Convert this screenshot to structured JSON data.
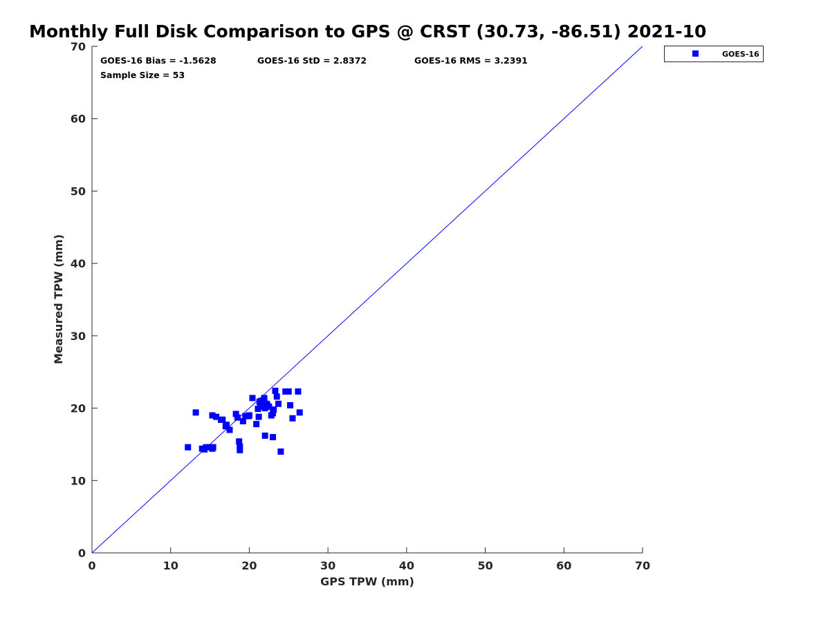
{
  "chart_data": {
    "type": "scatter",
    "title": "Monthly Full Disk Comparison to GPS @ CRST (30.73, -86.51) 2021-10",
    "xlabel": "GPS TPW (mm)",
    "ylabel": "Measured TPW (mm)",
    "xlim": [
      0,
      70
    ],
    "ylim": [
      0,
      70
    ],
    "xticks": [
      "0",
      "10",
      "20",
      "30",
      "40",
      "50",
      "60",
      "70"
    ],
    "yticks": [
      "0",
      "10",
      "20",
      "30",
      "40",
      "50",
      "60",
      "70"
    ],
    "grid": false,
    "legend_position": "outside-top-right",
    "one_to_one_line": true,
    "colors": {
      "series": "#0000ff",
      "axes": "#262626"
    },
    "stats": {
      "bias": "GOES-16 Bias = -1.5628",
      "std": "GOES-16 StD = 2.8372",
      "rms": "GOES-16 RMS = 3.2391",
      "sample_size": "Sample Size = 53"
    },
    "series": [
      {
        "name": "GOES-16",
        "marker": "square",
        "points": [
          [
            12.2,
            14.6
          ],
          [
            13.2,
            19.4
          ],
          [
            14.0,
            14.4
          ],
          [
            14.3,
            14.3
          ],
          [
            14.5,
            14.6
          ],
          [
            15.0,
            14.6
          ],
          [
            15.3,
            14.4
          ],
          [
            15.4,
            14.6
          ],
          [
            15.3,
            19.0
          ],
          [
            15.8,
            18.8
          ],
          [
            16.4,
            18.4
          ],
          [
            16.6,
            18.4
          ],
          [
            17.1,
            17.7
          ],
          [
            17.5,
            17.0
          ],
          [
            18.3,
            19.2
          ],
          [
            18.5,
            18.7
          ],
          [
            18.7,
            15.4
          ],
          [
            18.8,
            14.7
          ],
          [
            18.8,
            14.2
          ],
          [
            19.2,
            18.2
          ],
          [
            19.5,
            18.9
          ],
          [
            19.9,
            18.9
          ],
          [
            20.0,
            19.0
          ],
          [
            20.4,
            21.4
          ],
          [
            20.9,
            17.8
          ],
          [
            21.1,
            19.9
          ],
          [
            21.2,
            18.8
          ],
          [
            21.4,
            20.6
          ],
          [
            21.5,
            21.0
          ],
          [
            21.8,
            20.4
          ],
          [
            21.9,
            21.4
          ],
          [
            22.0,
            20.0
          ],
          [
            22.0,
            16.2
          ],
          [
            22.2,
            20.6
          ],
          [
            22.3,
            20.4
          ],
          [
            22.8,
            19.0
          ],
          [
            23.0,
            19.3
          ],
          [
            23.1,
            19.8
          ],
          [
            23.0,
            16.0
          ],
          [
            23.3,
            22.4
          ],
          [
            23.5,
            21.6
          ],
          [
            23.7,
            20.6
          ],
          [
            24.0,
            14.0
          ],
          [
            24.6,
            22.3
          ],
          [
            25.0,
            22.3
          ],
          [
            25.2,
            20.4
          ],
          [
            25.5,
            18.6
          ],
          [
            26.2,
            22.3
          ],
          [
            26.4,
            19.4
          ],
          [
            21.6,
            20.2
          ],
          [
            21.3,
            20.9
          ],
          [
            22.5,
            20.2
          ],
          [
            17.0,
            17.5
          ]
        ]
      }
    ]
  }
}
